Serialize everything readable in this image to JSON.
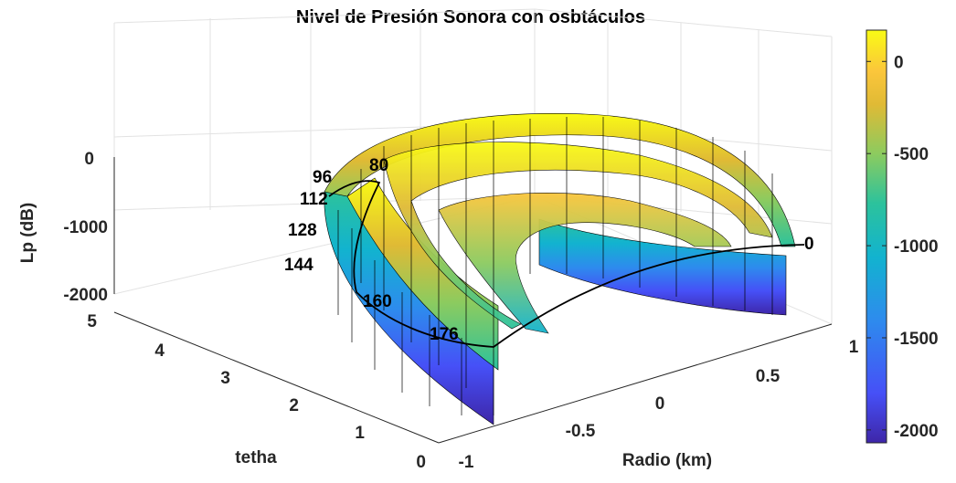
{
  "chart_data": {
    "type": "surface",
    "title": "Nivel de Presión Sonora con osbtáculos",
    "xlabel": "Radio (km)",
    "ylabel": "tetha",
    "zlabel": "Lp (dB)",
    "x_ticks": [
      "-1",
      "-0.5",
      "0",
      "0.5",
      "1"
    ],
    "y_ticks": [
      "0",
      "1",
      "2",
      "3",
      "4",
      "5"
    ],
    "z_ticks": [
      "-2000",
      "-1000",
      "0"
    ],
    "xlim": [
      -1,
      1
    ],
    "ylim": [
      0,
      5
    ],
    "zlim": [
      -2200,
      200
    ],
    "colormap": "parula",
    "colorbar": {
      "ticks": [
        "-2000",
        "-1500",
        "-1000",
        "-500",
        "0"
      ],
      "values": [
        -2000,
        -1500,
        -1000,
        -500,
        0
      ],
      "range": [
        -2070,
        170
      ]
    },
    "surface": {
      "shape": "half-annulus",
      "x_range": [
        -1,
        1
      ],
      "y_range": [
        0,
        1
      ],
      "levels_approx": {
        "outer_wall_top": 0,
        "inner_rings_top": -400,
        "wall_bottom": -2000
      }
    },
    "contour_labels": [
      "0",
      "80",
      "96",
      "112",
      "128",
      "144",
      "160",
      "176"
    ]
  },
  "colors": {
    "parula": [
      "#3e26a8",
      "#4650f7",
      "#2d8ced",
      "#12b3cf",
      "#2cc29c",
      "#8ccb5f",
      "#e0ba35",
      "#fbc63b",
      "#f9fb15"
    ]
  }
}
